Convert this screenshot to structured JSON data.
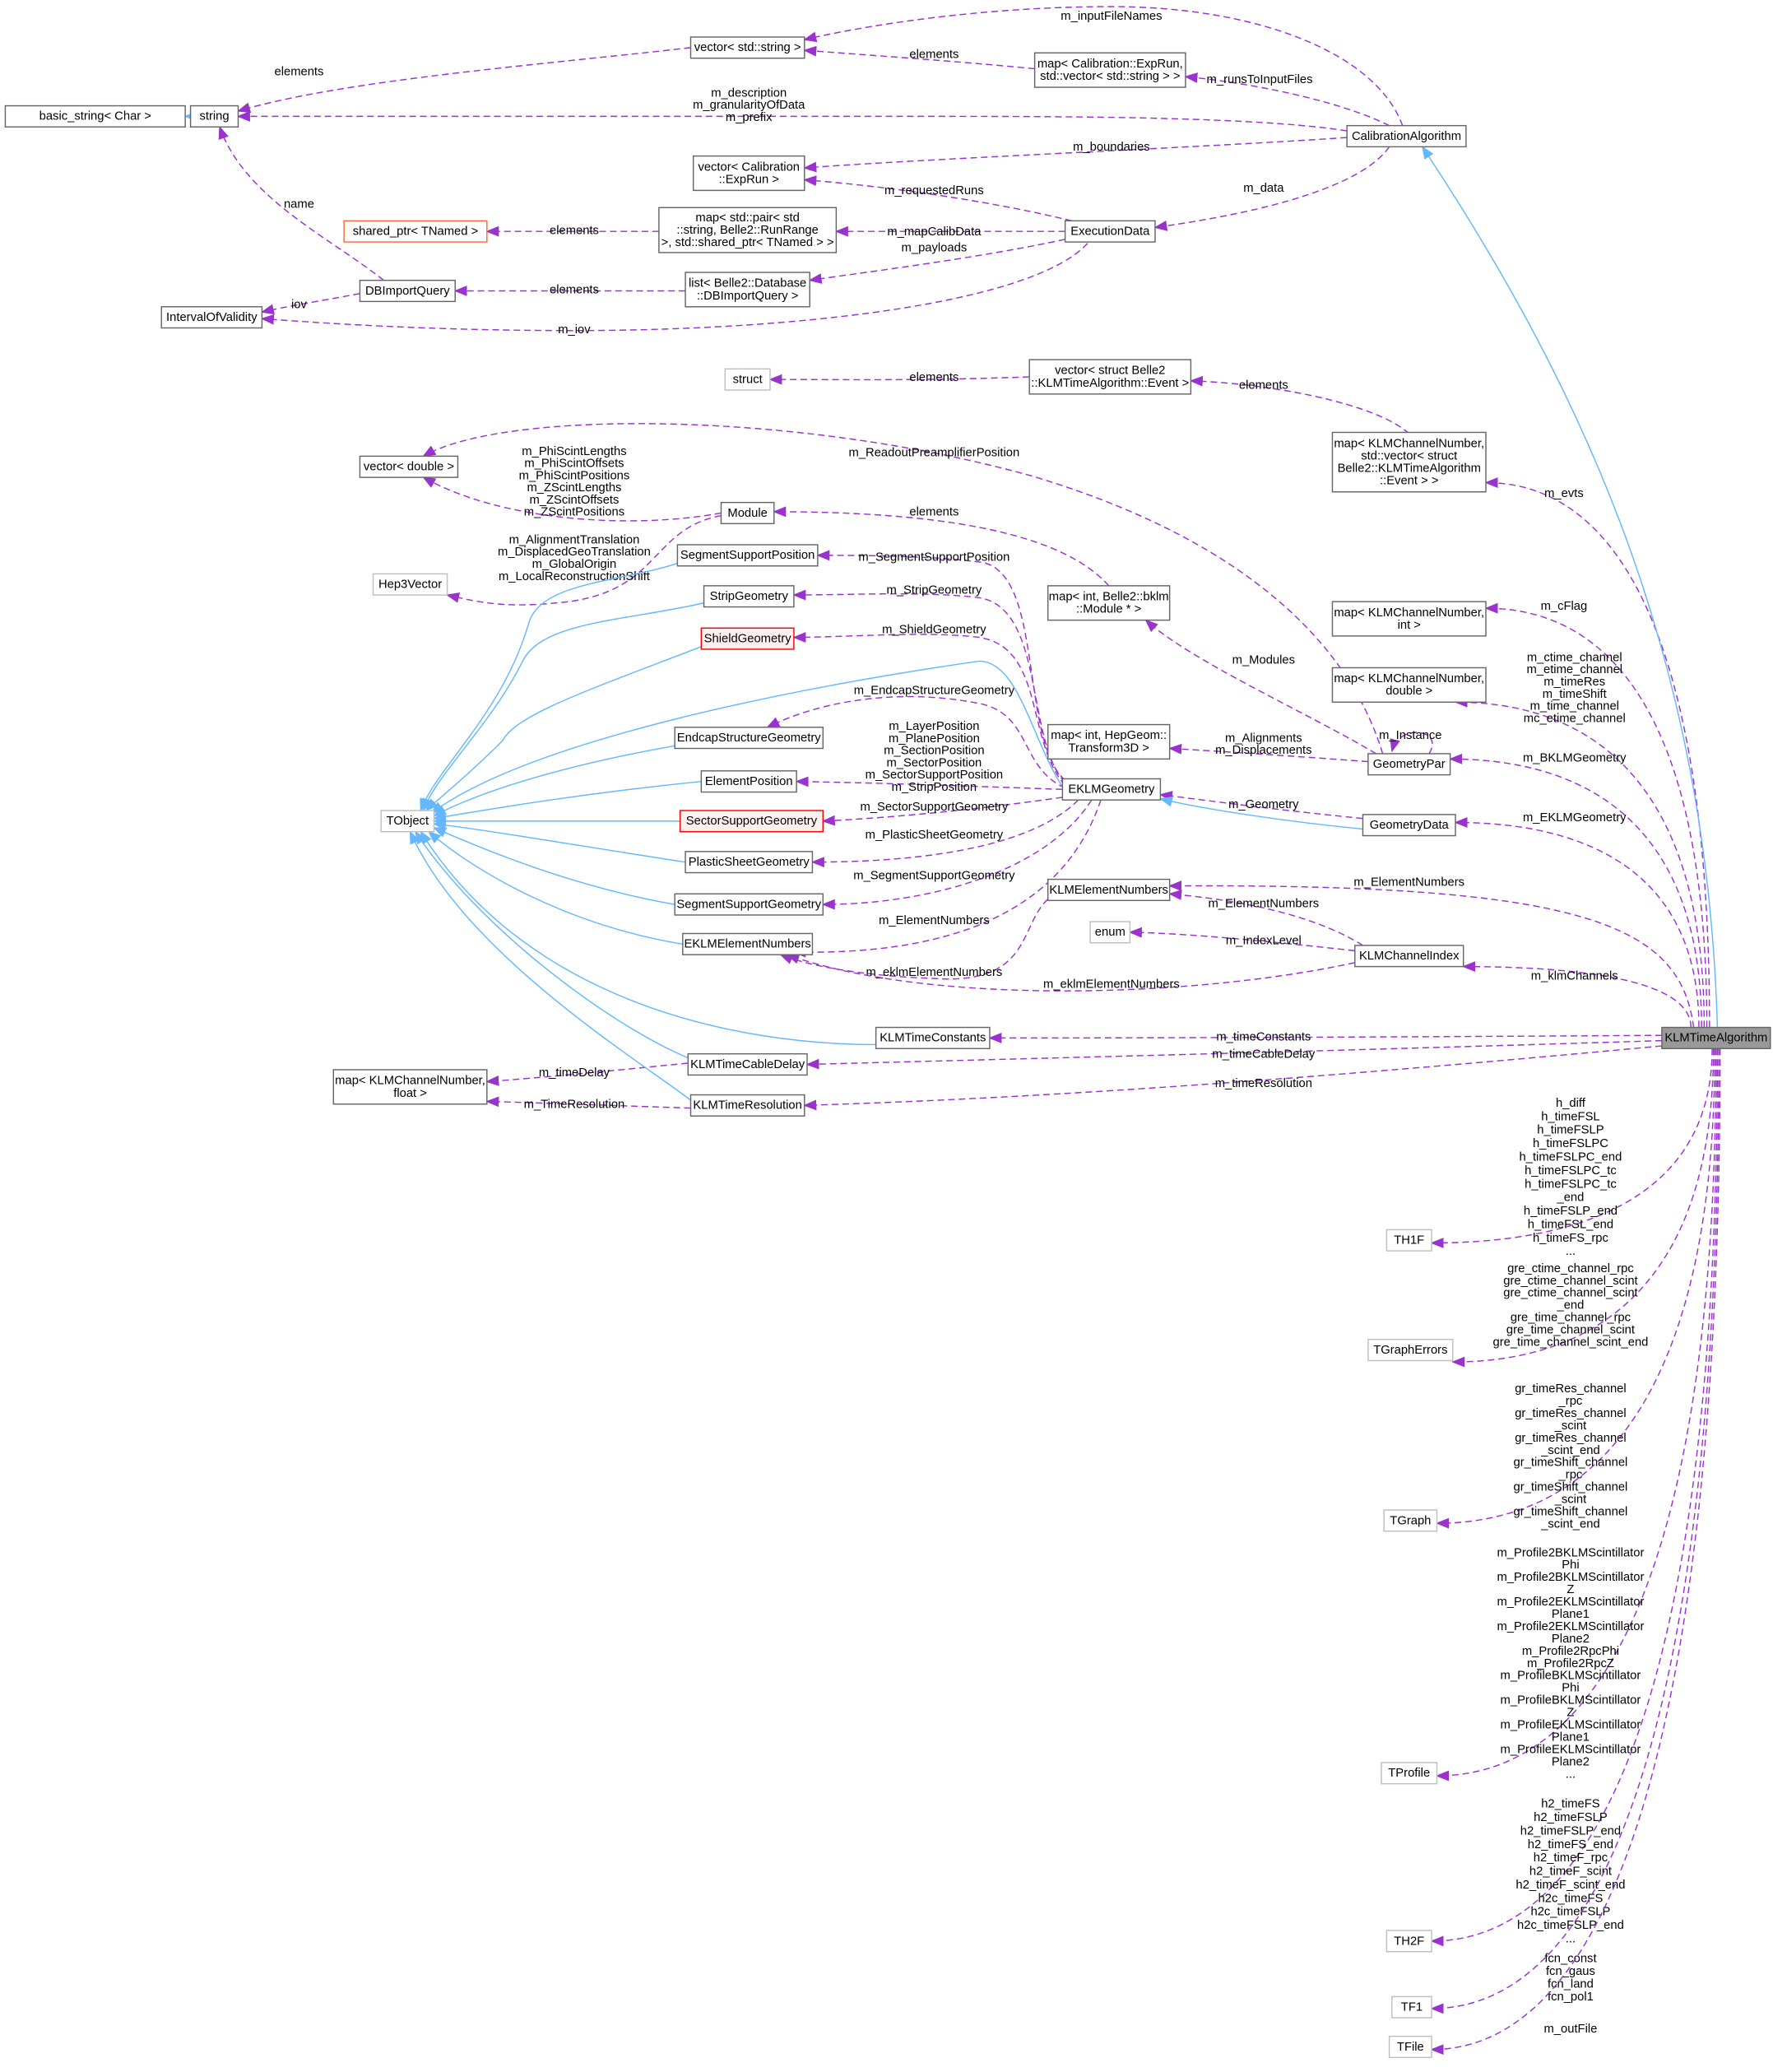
{
  "colors": {
    "member_edge": "#9a32cd",
    "inherit_edge": "#63b8ff",
    "focus_fill": "#999999",
    "red_border": "#ff0000"
  },
  "nodes": [
    {
      "id": "basic_string",
      "lines": [
        "basic_string< Char >"
      ],
      "style": "normal"
    },
    {
      "id": "string",
      "lines": [
        "string"
      ],
      "style": "normal"
    },
    {
      "id": "vector_string",
      "lines": [
        "vector< std::string >"
      ],
      "style": "normal"
    },
    {
      "id": "map_exprun",
      "lines": [
        "map< Calibration::ExpRun,",
        "std::vector< std::string > >"
      ],
      "style": "normal"
    },
    {
      "id": "CalibrationAlgorithm",
      "lines": [
        "CalibrationAlgorithm"
      ],
      "style": "normal"
    },
    {
      "id": "vector_exprun",
      "lines": [
        "vector< Calibration",
        "::ExpRun >"
      ],
      "style": "normal"
    },
    {
      "id": "shared_ptr",
      "lines": [
        "shared_ptr< TNamed >"
      ],
      "style": "orange"
    },
    {
      "id": "map_pair",
      "lines": [
        "map< std::pair< std",
        "::string, Belle2::RunRange",
        ">, std::shared_ptr< TNamed > >"
      ],
      "style": "normal"
    },
    {
      "id": "ExecutionData",
      "lines": [
        "ExecutionData"
      ],
      "style": "normal"
    },
    {
      "id": "DBImportQuery",
      "lines": [
        "DBImportQuery"
      ],
      "style": "normal"
    },
    {
      "id": "list_db",
      "lines": [
        "list< Belle2::Database",
        "::DBImportQuery >"
      ],
      "style": "normal"
    },
    {
      "id": "IntervalOfValidity",
      "lines": [
        "IntervalOfValidity"
      ],
      "style": "normal"
    },
    {
      "id": "struct",
      "lines": [
        "struct"
      ],
      "style": "grey"
    },
    {
      "id": "vector_event",
      "lines": [
        "vector< struct Belle2",
        "::KLMTimeAlgorithm::Event >"
      ],
      "style": "normal"
    },
    {
      "id": "map_event",
      "lines": [
        "map< KLMChannelNumber,",
        "std::vector< struct",
        "Belle2::KLMTimeAlgorithm",
        "::Event > >"
      ],
      "style": "normal"
    },
    {
      "id": "vector_double",
      "lines": [
        "vector< double >"
      ],
      "style": "normal"
    },
    {
      "id": "Module",
      "lines": [
        "Module"
      ],
      "style": "normal"
    },
    {
      "id": "Hep3Vector",
      "lines": [
        "Hep3Vector"
      ],
      "style": "grey"
    },
    {
      "id": "SegmentSupportPosition",
      "lines": [
        "SegmentSupportPosition"
      ],
      "style": "normal"
    },
    {
      "id": "StripGeometry",
      "lines": [
        "StripGeometry"
      ],
      "style": "normal"
    },
    {
      "id": "ShieldGeometry",
      "lines": [
        "ShieldGeometry"
      ],
      "style": "red"
    },
    {
      "id": "map_int_module",
      "lines": [
        "map< int, Belle2::bklm",
        "::Module * >"
      ],
      "style": "normal"
    },
    {
      "id": "map_int_int",
      "lines": [
        "map< KLMChannelNumber,",
        "int >"
      ],
      "style": "normal"
    },
    {
      "id": "map_double",
      "lines": [
        "map< KLMChannelNumber,",
        "double >"
      ],
      "style": "normal"
    },
    {
      "id": "map_transform",
      "lines": [
        "map< int, HepGeom::",
        "Transform3D >"
      ],
      "style": "normal"
    },
    {
      "id": "GeometryPar",
      "lines": [
        "GeometryPar"
      ],
      "style": "normal"
    },
    {
      "id": "EKLMGeometry",
      "lines": [
        "EKLMGeometry"
      ],
      "style": "normal"
    },
    {
      "id": "EndcapStructureGeometry",
      "lines": [
        "EndcapStructureGeometry"
      ],
      "style": "normal"
    },
    {
      "id": "ElementPosition",
      "lines": [
        "ElementPosition"
      ],
      "style": "normal"
    },
    {
      "id": "TObject",
      "lines": [
        "TObject"
      ],
      "style": "grey"
    },
    {
      "id": "SectorSupportGeometry",
      "lines": [
        "SectorSupportGeometry"
      ],
      "style": "red"
    },
    {
      "id": "GeometryData",
      "lines": [
        "GeometryData"
      ],
      "style": "normal"
    },
    {
      "id": "PlasticSheetGeometry",
      "lines": [
        "PlasticSheetGeometry"
      ],
      "style": "normal"
    },
    {
      "id": "KLMElementNumbers",
      "lines": [
        "KLMElementNumbers"
      ],
      "style": "normal"
    },
    {
      "id": "SegmentSupportGeometry",
      "lines": [
        "SegmentSupportGeometry"
      ],
      "style": "normal"
    },
    {
      "id": "enum",
      "lines": [
        "enum"
      ],
      "style": "grey"
    },
    {
      "id": "EKLMElementNumbers",
      "lines": [
        "EKLMElementNumbers"
      ],
      "style": "normal"
    },
    {
      "id": "KLMChannelIndex",
      "lines": [
        "KLMChannelIndex"
      ],
      "style": "normal"
    },
    {
      "id": "KLMTimeConstants",
      "lines": [
        "KLMTimeConstants"
      ],
      "style": "normal"
    },
    {
      "id": "KLMTimeAlgorithm",
      "lines": [
        "KLMTimeAlgorithm"
      ],
      "style": "focus"
    },
    {
      "id": "KLMTimeCableDelay",
      "lines": [
        "KLMTimeCableDelay"
      ],
      "style": "normal"
    },
    {
      "id": "map_float",
      "lines": [
        "map< KLMChannelNumber,",
        "float >"
      ],
      "style": "normal"
    },
    {
      "id": "KLMTimeResolution",
      "lines": [
        "KLMTimeResolution"
      ],
      "style": "normal"
    },
    {
      "id": "TH1F",
      "lines": [
        "TH1F"
      ],
      "style": "grey"
    },
    {
      "id": "TGraphErrors",
      "lines": [
        "TGraphErrors"
      ],
      "style": "grey"
    },
    {
      "id": "TGraph",
      "lines": [
        "TGraph"
      ],
      "style": "grey"
    },
    {
      "id": "TProfile",
      "lines": [
        "TProfile"
      ],
      "style": "grey"
    },
    {
      "id": "TH2F",
      "lines": [
        "TH2F"
      ],
      "style": "grey"
    },
    {
      "id": "TF1",
      "lines": [
        "TF1"
      ],
      "style": "grey"
    },
    {
      "id": "TFile",
      "lines": [
        "TFile"
      ],
      "style": "grey"
    }
  ],
  "edges": [
    {
      "from": "string",
      "to": "basic_string",
      "kind": "inherit",
      "labels": []
    },
    {
      "from": "vector_string",
      "to": "string",
      "kind": "member",
      "labels": [
        "elements"
      ]
    },
    {
      "from": "map_exprun",
      "to": "vector_string",
      "kind": "member",
      "labels": [
        "elements"
      ]
    },
    {
      "from": "CalibrationAlgorithm",
      "to": "vector_string",
      "kind": "member",
      "labels": [
        "m_inputFileNames"
      ]
    },
    {
      "from": "CalibrationAlgorithm",
      "to": "map_exprun",
      "kind": "member",
      "labels": [
        "m_runsToInputFiles"
      ]
    },
    {
      "from": "CalibrationAlgorithm",
      "to": "string",
      "kind": "member",
      "labels": [
        "m_description",
        "m_granularityOfData",
        "m_prefix"
      ]
    },
    {
      "from": "CalibrationAlgorithm",
      "to": "vector_exprun",
      "kind": "member",
      "labels": [
        "m_boundaries"
      ]
    },
    {
      "from": "CalibrationAlgorithm",
      "to": "ExecutionData",
      "kind": "member",
      "labels": [
        "m_data"
      ]
    },
    {
      "from": "ExecutionData",
      "to": "vector_exprun",
      "kind": "member",
      "labels": [
        "m_requestedRuns"
      ]
    },
    {
      "from": "ExecutionData",
      "to": "map_pair",
      "kind": "member",
      "labels": [
        "m_mapCalibData"
      ]
    },
    {
      "from": "ExecutionData",
      "to": "list_db",
      "kind": "member",
      "labels": [
        "m_payloads"
      ]
    },
    {
      "from": "ExecutionData",
      "to": "IntervalOfValidity",
      "kind": "member",
      "labels": [
        "m_iov"
      ]
    },
    {
      "from": "map_pair",
      "to": "shared_ptr",
      "kind": "member",
      "labels": [
        "elements"
      ]
    },
    {
      "from": "list_db",
      "to": "DBImportQuery",
      "kind": "member",
      "labels": [
        "elements"
      ]
    },
    {
      "from": "DBImportQuery",
      "to": "string",
      "kind": "member",
      "labels": [
        "name"
      ]
    },
    {
      "from": "DBImportQuery",
      "to": "IntervalOfValidity",
      "kind": "member",
      "labels": [
        "iov"
      ]
    },
    {
      "from": "vector_event",
      "to": "struct",
      "kind": "member",
      "labels": [
        "elements"
      ]
    },
    {
      "from": "map_event",
      "to": "vector_event",
      "kind": "member",
      "labels": [
        "elements"
      ]
    },
    {
      "from": "KLMTimeAlgorithm",
      "to": "map_event",
      "kind": "member",
      "labels": [
        "m_evts"
      ]
    },
    {
      "from": "GeometryPar",
      "to": "vector_double",
      "kind": "member",
      "labels": [
        "m_ReadoutPreamplifierPosition"
      ]
    },
    {
      "from": "Module",
      "to": "vector_double",
      "kind": "member",
      "labels": [
        "m_PhiScintLengths",
        "m_PhiScintOffsets",
        "m_PhiScintPositions",
        "m_ZScintLengths",
        "m_ZScintOffsets",
        "m_ZScintPositions"
      ]
    },
    {
      "from": "Module",
      "to": "Hep3Vector",
      "kind": "member",
      "labels": [
        "m_AlignmentTranslation",
        "m_DisplacedGeoTranslation",
        "m_GlobalOrigin",
        "m_LocalReconstructionShift"
      ]
    },
    {
      "from": "map_int_module",
      "to": "Module",
      "kind": "member",
      "labels": [
        "elements"
      ]
    },
    {
      "from": "GeometryPar",
      "to": "map_int_module",
      "kind": "member",
      "labels": [
        "m_Modules"
      ]
    },
    {
      "from": "KLMTimeAlgorithm",
      "to": "map_int_int",
      "kind": "member",
      "labels": [
        "m_cFlag"
      ]
    },
    {
      "from": "KLMTimeAlgorithm",
      "to": "map_double",
      "kind": "member",
      "labels": [
        "m_ctime_channel",
        "m_etime_channel",
        "m_timeRes",
        "m_timeShift",
        "m_time_channel",
        "mc_etime_channel"
      ]
    },
    {
      "from": "GeometryPar",
      "to": "GeometryPar",
      "kind": "member",
      "labels": [
        "m_Instance"
      ]
    },
    {
      "from": "KLMTimeAlgorithm",
      "to": "GeometryPar",
      "kind": "member",
      "labels": [
        "m_BKLMGeometry"
      ]
    },
    {
      "from": "GeometryPar",
      "to": "map_transform",
      "kind": "member",
      "labels": [
        "m_Alignments",
        "m_Displacements"
      ]
    },
    {
      "from": "GeometryData",
      "to": "EKLMGeometry",
      "kind": "member",
      "labels": [
        "m_Geometry"
      ]
    },
    {
      "from": "GeometryData",
      "to": "EKLMGeometry",
      "kind": "inherit",
      "labels": []
    },
    {
      "from": "KLMTimeAlgorithm",
      "to": "GeometryData",
      "kind": "member",
      "labels": [
        "m_EKLMGeometry"
      ]
    },
    {
      "from": "EKLMGeometry",
      "to": "SegmentSupportPosition",
      "kind": "member",
      "labels": [
        "m_SegmentSupportPosition"
      ]
    },
    {
      "from": "EKLMGeometry",
      "to": "StripGeometry",
      "kind": "member",
      "labels": [
        "m_StripGeometry"
      ]
    },
    {
      "from": "EKLMGeometry",
      "to": "ShieldGeometry",
      "kind": "member",
      "labels": [
        "m_ShieldGeometry"
      ]
    },
    {
      "from": "EKLMGeometry",
      "to": "EndcapStructureGeometry",
      "kind": "member",
      "labels": [
        "m_EndcapStructureGeometry"
      ]
    },
    {
      "from": "EKLMGeometry",
      "to": "ElementPosition",
      "kind": "member",
      "labels": [
        "m_LayerPosition",
        "m_PlanePosition",
        "m_SectionPosition",
        "m_SectorPosition",
        "m_SectorSupportPosition",
        "m_StripPosition"
      ]
    },
    {
      "from": "EKLMGeometry",
      "to": "SectorSupportGeometry",
      "kind": "member",
      "labels": [
        "m_SectorSupportGeometry"
      ]
    },
    {
      "from": "EKLMGeometry",
      "to": "PlasticSheetGeometry",
      "kind": "member",
      "labels": [
        "m_PlasticSheetGeometry"
      ]
    },
    {
      "from": "EKLMGeometry",
      "to": "SegmentSupportGeometry",
      "kind": "member",
      "labels": [
        "m_SegmentSupportGeometry"
      ]
    },
    {
      "from": "EKLMGeometry",
      "to": "EKLMElementNumbers",
      "kind": "member",
      "labels": [
        "m_ElementNumbers"
      ]
    },
    {
      "from": "KLMElementNumbers",
      "to": "EKLMElementNumbers",
      "kind": "member",
      "labels": [
        "m_eklmElementNumbers"
      ]
    },
    {
      "from": "KLMChannelIndex",
      "to": "EKLMElementNumbers",
      "kind": "member",
      "labels": [
        "m_eklmElementNumbers"
      ]
    },
    {
      "from": "KLMTimeAlgorithm",
      "to": "KLMElementNumbers",
      "kind": "member",
      "labels": [
        "m_ElementNumbers"
      ]
    },
    {
      "from": "KLMChannelIndex",
      "to": "KLMElementNumbers",
      "kind": "member",
      "labels": [
        "m_ElementNumbers"
      ]
    },
    {
      "from": "KLMChannelIndex",
      "to": "enum",
      "kind": "member",
      "labels": [
        "m_IndexLevel"
      ]
    },
    {
      "from": "KLMTimeAlgorithm",
      "to": "KLMChannelIndex",
      "kind": "member",
      "labels": [
        "m_klmChannels"
      ]
    },
    {
      "from": "KLMTimeAlgorithm",
      "to": "KLMTimeConstants",
      "kind": "member",
      "labels": [
        "m_timeConstants"
      ]
    },
    {
      "from": "KLMTimeAlgorithm",
      "to": "KLMTimeCableDelay",
      "kind": "member",
      "labels": [
        "m_timeCableDelay"
      ]
    },
    {
      "from": "KLMTimeAlgorithm",
      "to": "KLMTimeResolution",
      "kind": "member",
      "labels": [
        "m_timeResolution"
      ]
    },
    {
      "from": "KLMTimeCableDelay",
      "to": "map_float",
      "kind": "member",
      "labels": [
        "m_timeDelay"
      ]
    },
    {
      "from": "KLMTimeResolution",
      "to": "map_float",
      "kind": "member",
      "labels": [
        "m_TimeResolution"
      ]
    },
    {
      "from": "KLMTimeAlgorithm",
      "to": "CalibrationAlgorithm",
      "kind": "inherit",
      "labels": []
    },
    {
      "from": "KLMTimeAlgorithm",
      "to": "TH1F",
      "kind": "member",
      "labels": [
        "h_diff",
        "h_timeFSL",
        "h_timeFSLP",
        "h_timeFSLPC",
        "h_timeFSLPC_end",
        "h_timeFSLPC_tc",
        "h_timeFSLPC_tc",
        "_end",
        "h_timeFSLP_end",
        "h_timeFSL_end",
        "h_timeFS_rpc",
        "..."
      ]
    },
    {
      "from": "KLMTimeAlgorithm",
      "to": "TGraphErrors",
      "kind": "member",
      "labels": [
        "gre_ctime_channel_rpc",
        "gre_ctime_channel_scint",
        "gre_ctime_channel_scint",
        "_end",
        "gre_time_channel_rpc",
        "gre_time_channel_scint",
        "gre_time_channel_scint_end"
      ]
    },
    {
      "from": "KLMTimeAlgorithm",
      "to": "TGraph",
      "kind": "member",
      "labels": [
        "gr_timeRes_channel",
        "_rpc",
        "gr_timeRes_channel",
        "_scint",
        "gr_timeRes_channel",
        "_scint_end",
        "gr_timeShift_channel",
        "_rpc",
        "gr_timeShift_channel",
        "_scint",
        "gr_timeShift_channel",
        "_scint_end"
      ]
    },
    {
      "from": "KLMTimeAlgorithm",
      "to": "TProfile",
      "kind": "member",
      "labels": [
        "m_Profile2BKLMScintillator",
        "Phi",
        "m_Profile2BKLMScintillator",
        "Z",
        "m_Profile2EKLMScintillator",
        "Plane1",
        "m_Profile2EKLMScintillator",
        "Plane2",
        "m_Profile2RpcPhi",
        "m_Profile2RpcZ",
        "m_ProfileBKLMScintillator",
        "Phi",
        "m_ProfileBKLMScintillator",
        "Z",
        "m_ProfileEKLMScintillator",
        "Plane1",
        "m_ProfileEKLMScintillator",
        "Plane2",
        "..."
      ]
    },
    {
      "from": "KLMTimeAlgorithm",
      "to": "TH2F",
      "kind": "member",
      "labels": [
        "h2_timeFS",
        "h2_timeFSLP",
        "h2_timeFSLP_end",
        "h2_timeFS_end",
        "h2_timeF_rpc",
        "h2_timeF_scint",
        "h2_timeF_scint_end",
        "h2c_timeFS",
        "h2c_timeFSLP",
        "h2c_timeFSLP_end",
        "..."
      ]
    },
    {
      "from": "KLMTimeAlgorithm",
      "to": "TF1",
      "kind": "member",
      "labels": [
        "fcn_const",
        "fcn_gaus",
        "fcn_land",
        "fcn_pol1"
      ]
    },
    {
      "from": "KLMTimeAlgorithm",
      "to": "TFile",
      "kind": "member",
      "labels": [
        "m_outFile"
      ]
    },
    {
      "from": "SegmentSupportPosition",
      "to": "TObject",
      "kind": "inherit",
      "labels": []
    },
    {
      "from": "StripGeometry",
      "to": "TObject",
      "kind": "inherit",
      "labels": []
    },
    {
      "from": "ShieldGeometry",
      "to": "TObject",
      "kind": "inherit",
      "labels": []
    },
    {
      "from": "EKLMGeometry",
      "to": "TObject",
      "kind": "inherit",
      "labels": []
    },
    {
      "from": "EndcapStructureGeometry",
      "to": "TObject",
      "kind": "inherit",
      "labels": []
    },
    {
      "from": "ElementPosition",
      "to": "TObject",
      "kind": "inherit",
      "labels": []
    },
    {
      "from": "SectorSupportGeometry",
      "to": "TObject",
      "kind": "inherit",
      "labels": []
    },
    {
      "from": "PlasticSheetGeometry",
      "to": "TObject",
      "kind": "inherit",
      "labels": []
    },
    {
      "from": "SegmentSupportGeometry",
      "to": "TObject",
      "kind": "inherit",
      "labels": []
    },
    {
      "from": "EKLMElementNumbers",
      "to": "TObject",
      "kind": "inherit",
      "labels": []
    },
    {
      "from": "KLMTimeConstants",
      "to": "TObject",
      "kind": "inherit",
      "labels": []
    },
    {
      "from": "KLMTimeCableDelay",
      "to": "TObject",
      "kind": "inherit",
      "labels": []
    },
    {
      "from": "KLMTimeResolution",
      "to": "TObject",
      "kind": "inherit",
      "labels": []
    }
  ]
}
